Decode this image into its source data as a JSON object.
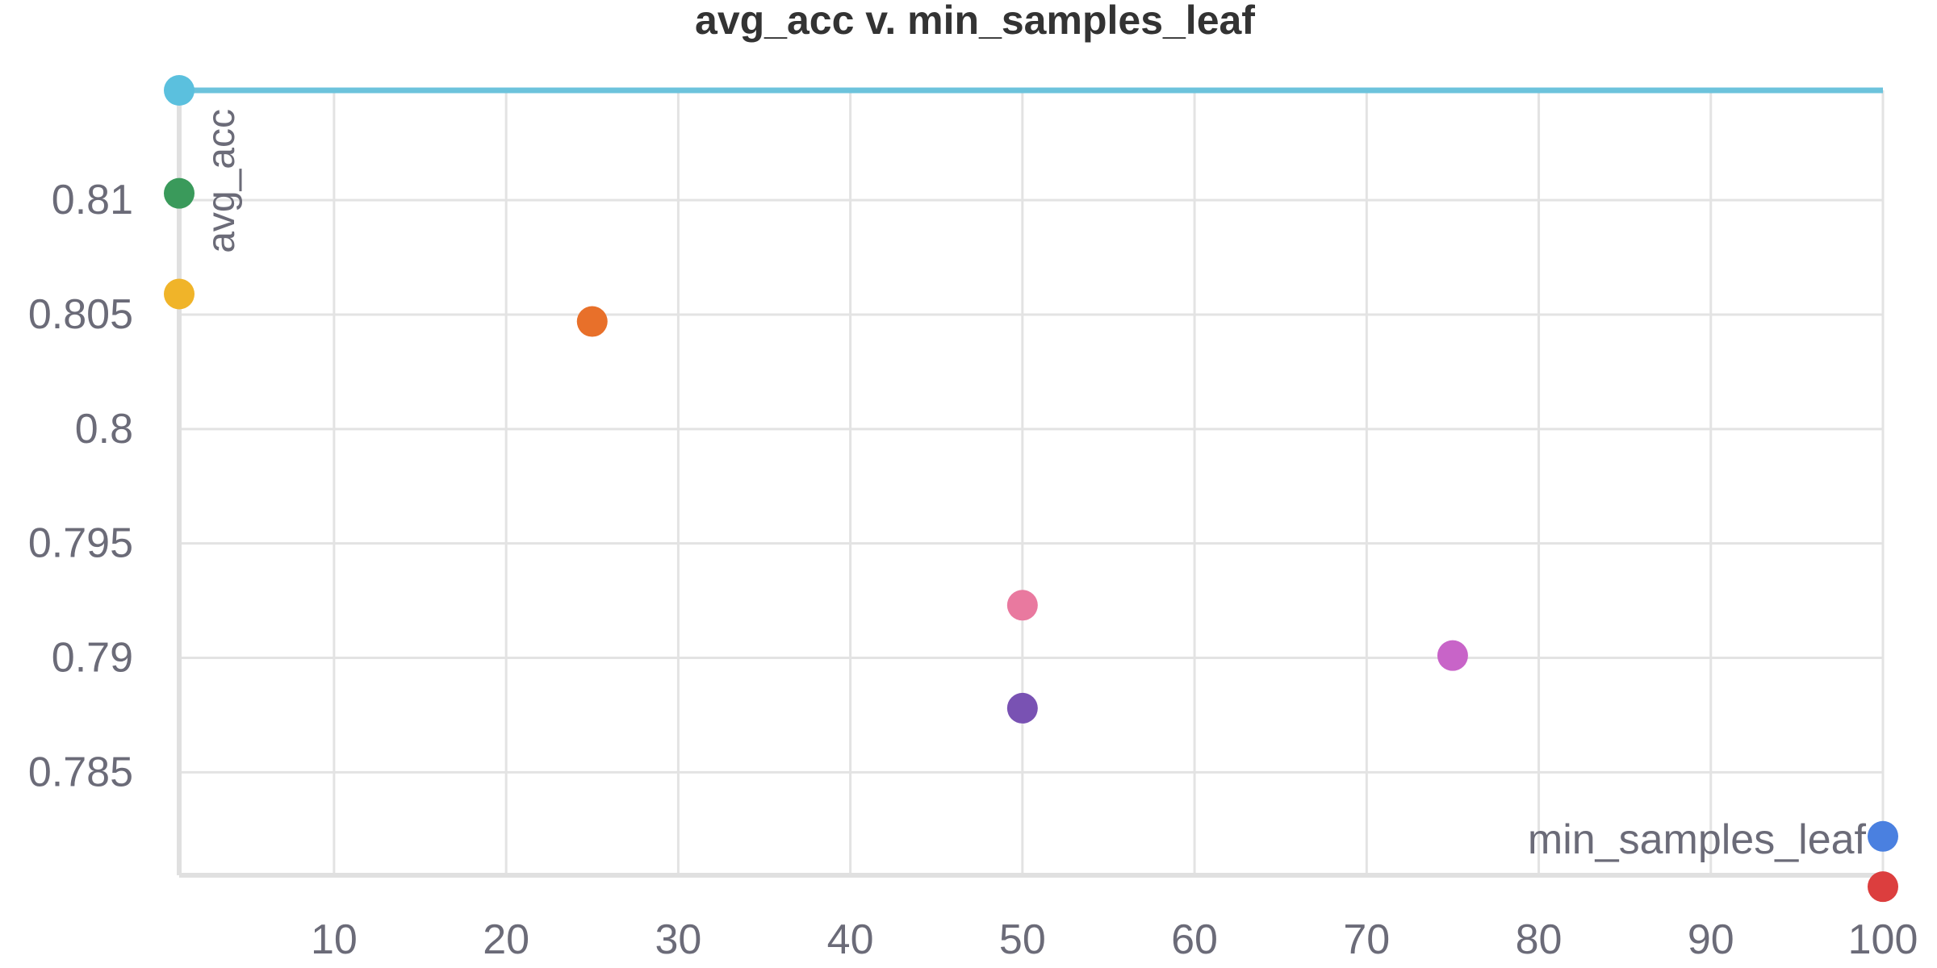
{
  "chart_data": {
    "type": "scatter",
    "title": "avg_acc v. min_samples_leaf",
    "xlabel": "min_samples_leaf",
    "ylabel": "avg_acc",
    "xlim": [
      1,
      100
    ],
    "ylim": [
      0.7805,
      0.8148
    ],
    "x_ticks": [
      10,
      20,
      30,
      40,
      50,
      60,
      70,
      80,
      90,
      100
    ],
    "y_ticks": [
      0.785,
      0.79,
      0.795,
      0.8,
      0.805,
      0.81
    ],
    "y_tick_labels": [
      "0.785",
      "0.79",
      "0.795",
      "0.8",
      "0.805",
      "0.81"
    ],
    "x_tick_labels": [
      "10",
      "20",
      "30",
      "40",
      "50",
      "60",
      "70",
      "80",
      "90",
      "100"
    ],
    "grid": true,
    "points": [
      {
        "x": 1,
        "y": 0.8148,
        "color": "#5bc0de"
      },
      {
        "x": 1,
        "y": 0.8103,
        "color": "#3a9a5b"
      },
      {
        "x": 1,
        "y": 0.8059,
        "color": "#f0b429"
      },
      {
        "x": 25,
        "y": 0.8047,
        "color": "#e8702a"
      },
      {
        "x": 50,
        "y": 0.7923,
        "color": "#e9799f"
      },
      {
        "x": 50,
        "y": 0.7878,
        "color": "#7952b3"
      },
      {
        "x": 75,
        "y": 0.7901,
        "color": "#c864c8"
      },
      {
        "x": 100,
        "y": 0.7822,
        "color": "#4a80e0"
      },
      {
        "x": 100,
        "y": 0.78,
        "color": "#dc3e3e"
      }
    ],
    "reference_line": {
      "y": 0.8148,
      "color": "#6cc3dc"
    },
    "colors": {
      "grid": "#e3e3e3",
      "axis": "#e0e0e0",
      "text": "#6b6b78",
      "title": "#333333"
    }
  }
}
